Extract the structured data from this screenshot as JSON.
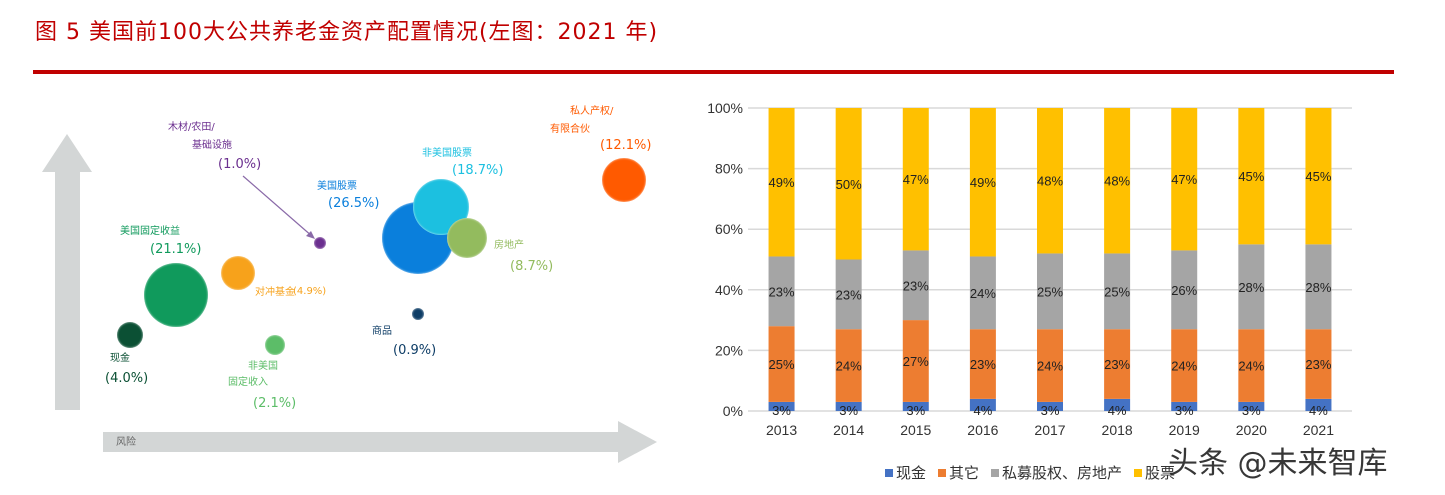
{
  "title": "图 5 美国前100大公共养老金资产配置情况(左图：2021 年)",
  "watermark": "头条 @未来智库",
  "chart_data": [
    {
      "type": "bubble",
      "xlabel": "风险",
      "bubbles": [
        {
          "label_lines": [
            "现金"
          ],
          "pct": "(4.0%)",
          "value": 4.0,
          "color": "#0b5034"
        },
        {
          "label_lines": [
            "美国固定收益"
          ],
          "pct": "(21.1%)",
          "value": 21.1,
          "color": "#109a5c"
        },
        {
          "label_lines": [
            "对冲基金"
          ],
          "pct": "(4.9%)",
          "value": 4.9,
          "color": "#f7a21b"
        },
        {
          "label_lines": [
            "非美国",
            "固定收入"
          ],
          "pct": "(2.1%)",
          "value": 2.1,
          "color": "#5cbd68"
        },
        {
          "label_lines": [
            "木材/农田/",
            "基础设施"
          ],
          "pct": "(1.0%)",
          "value": 1.0,
          "color": "#6b2f8f"
        },
        {
          "label_lines": [
            "美国股票"
          ],
          "pct": "(26.5%)",
          "value": 26.5,
          "color": "#0a7fdc"
        },
        {
          "label_lines": [
            "非美国股票"
          ],
          "pct": "(18.7%)",
          "value": 18.7,
          "color": "#1cc0e0"
        },
        {
          "label_lines": [
            "房地产"
          ],
          "pct": "(8.7%)",
          "value": 8.7,
          "color": "#93bb5e"
        },
        {
          "label_lines": [
            "商品"
          ],
          "pct": "(0.9%)",
          "value": 0.9,
          "color": "#0e3d66"
        },
        {
          "label_lines": [
            "私人产权/",
            "有限合伙"
          ],
          "pct": "(12.1%)",
          "value": 12.1,
          "color": "#ff5a00"
        }
      ]
    },
    {
      "type": "bar",
      "stacked": true,
      "categories": [
        "2013",
        "2014",
        "2015",
        "2016",
        "2017",
        "2018",
        "2019",
        "2020",
        "2021"
      ],
      "series": [
        {
          "name": "现金",
          "color": "#4472c4",
          "values": [
            3,
            3,
            3,
            4,
            3,
            4,
            3,
            3,
            4
          ]
        },
        {
          "name": "其它",
          "color": "#ed7d31",
          "values": [
            25,
            24,
            27,
            23,
            24,
            23,
            24,
            24,
            23
          ]
        },
        {
          "name": "私募股权、房地产",
          "color": "#a5a5a5",
          "values": [
            23,
            23,
            23,
            24,
            25,
            25,
            26,
            28,
            28
          ]
        },
        {
          "name": "股票",
          "color": "#ffc000",
          "values": [
            49,
            50,
            47,
            49,
            48,
            48,
            47,
            45,
            45
          ]
        }
      ],
      "yticks": [
        "0%",
        "20%",
        "40%",
        "60%",
        "80%",
        "100%"
      ],
      "ylim": [
        0,
        100
      ],
      "grid": true,
      "legend": "bottom"
    }
  ]
}
